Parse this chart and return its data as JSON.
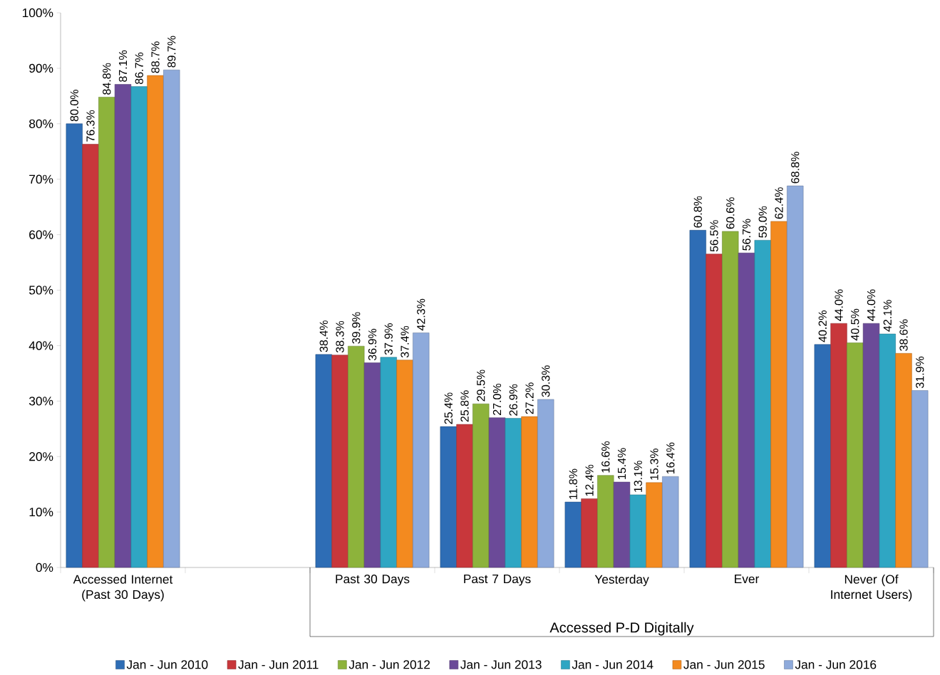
{
  "chart_data": {
    "type": "bar",
    "categories": [
      "Accessed Internet (Past 30 Days)",
      null,
      "Past 30 Days",
      "Past 7 Days",
      "Yesterday",
      "Ever",
      "Never (Of Internet Users)"
    ],
    "series": [
      {
        "name": "Jan - Jun 2010",
        "color": "#2e6db5",
        "values": [
          80.0,
          null,
          38.4,
          25.4,
          11.8,
          60.8,
          40.2
        ],
        "value_labels": [
          "80.0%",
          null,
          "38.4%",
          "25.4%",
          "11.8%",
          "60.8%",
          "40.2%"
        ]
      },
      {
        "name": "Jan - Jun 2011",
        "color": "#c8373b",
        "values": [
          76.3,
          null,
          38.3,
          25.8,
          12.4,
          56.5,
          44.0
        ],
        "value_labels": [
          "76.3%",
          null,
          "38.3%",
          "25.8%",
          "12.4%",
          "56.5%",
          "44.0%"
        ]
      },
      {
        "name": "Jan - Jun 2012",
        "color": "#8db33b",
        "values": [
          84.8,
          null,
          39.9,
          29.5,
          16.6,
          60.6,
          40.5
        ],
        "value_labels": [
          "84.8%",
          null,
          "39.9%",
          "29.5%",
          "16.6%",
          "60.6%",
          "40.5%"
        ]
      },
      {
        "name": "Jan - Jun 2013",
        "color": "#6b4a98",
        "values": [
          87.1,
          null,
          36.9,
          27.0,
          15.4,
          56.7,
          44.0
        ],
        "value_labels": [
          "87.1%",
          null,
          "36.9%",
          "27.0%",
          "15.4%",
          "56.7%",
          "44.0%"
        ]
      },
      {
        "name": "Jan - Jun 2014",
        "color": "#2fa6c3",
        "values": [
          86.7,
          null,
          37.9,
          26.9,
          13.1,
          59.0,
          42.1
        ],
        "value_labels": [
          "86.7%",
          null,
          "37.9%",
          "26.9%",
          "13.1%",
          "59.0%",
          "42.1%"
        ]
      },
      {
        "name": "Jan - Jun 2015",
        "color": "#f38a1f",
        "values": [
          88.7,
          null,
          37.4,
          27.2,
          15.3,
          62.4,
          38.6
        ],
        "value_labels": [
          "88.7%",
          null,
          "37.4%",
          "27.2%",
          "15.3%",
          "62.4%",
          "38.6%"
        ]
      },
      {
        "name": "Jan - Jun 2016",
        "color": "#8eaadb",
        "values": [
          89.7,
          null,
          42.3,
          30.3,
          16.4,
          68.8,
          31.9
        ],
        "value_labels": [
          "89.7%",
          null,
          "42.3%",
          "30.3%",
          "16.4%",
          "68.8%",
          "31.9%"
        ]
      }
    ],
    "ylim": [
      0,
      100
    ],
    "yticks": [
      {
        "value": 0,
        "label": "0%"
      },
      {
        "value": 10,
        "label": "10%"
      },
      {
        "value": 20,
        "label": "20%"
      },
      {
        "value": 30,
        "label": "30%"
      },
      {
        "value": 40,
        "label": "40%"
      },
      {
        "value": 50,
        "label": "50%"
      },
      {
        "value": 60,
        "label": "60%"
      },
      {
        "value": 70,
        "label": "70%"
      },
      {
        "value": 80,
        "label": "80%"
      },
      {
        "value": 90,
        "label": "90%"
      },
      {
        "value": 100,
        "label": "100%"
      }
    ],
    "annotations": [
      "Accessed P-D Digitally"
    ],
    "grid": false,
    "legend": "bottom"
  }
}
